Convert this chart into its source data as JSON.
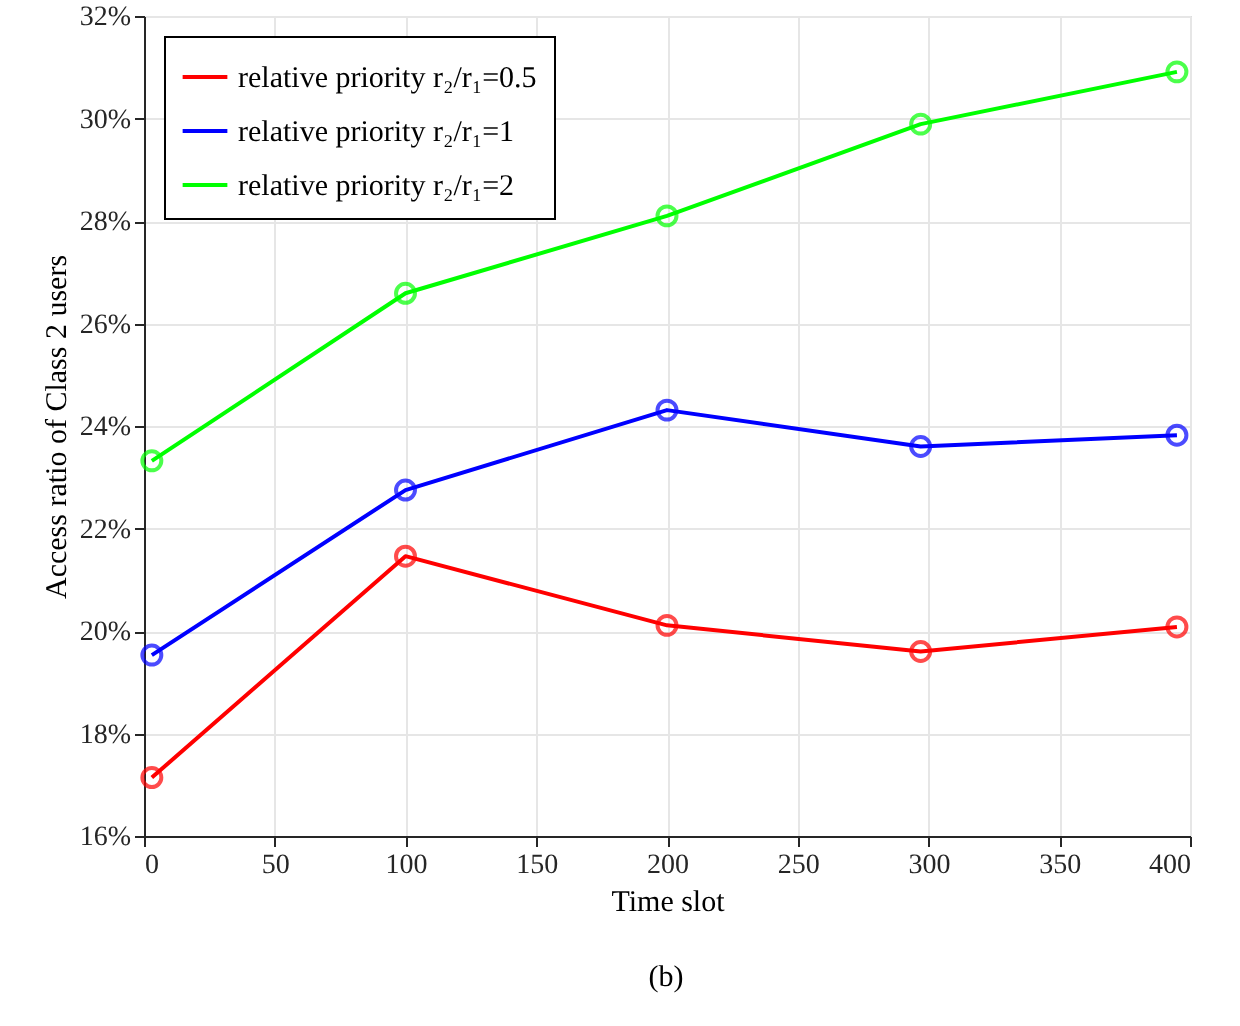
{
  "chart_data": {
    "type": "line",
    "xlabel": "Time slot",
    "ylabel": "Access ratio of Class 2 users",
    "x": [
      3,
      100,
      200,
      297,
      395
    ],
    "series": [
      {
        "name": "relative priority r₂/r₁=0.5",
        "color": "#ff0000",
        "values": [
          17.14,
          21.46,
          20.11,
          19.6,
          20.08
        ]
      },
      {
        "name": "relative priority r₂/r₁=1",
        "color": "#0000ff",
        "values": [
          19.53,
          22.75,
          24.31,
          23.6,
          23.82
        ]
      },
      {
        "name": "relative priority r₂/r₁=2",
        "color": "#00ff00",
        "values": [
          23.32,
          26.59,
          28.1,
          29.89,
          30.91
        ]
      }
    ],
    "xlim": [
      0,
      400
    ],
    "xticks": [
      0,
      50,
      100,
      150,
      200,
      250,
      300,
      350,
      400
    ],
    "ylim": [
      16,
      32
    ],
    "yticks": [
      {
        "value": 16,
        "label": "16%"
      },
      {
        "value": 18,
        "label": "18%"
      },
      {
        "value": 20,
        "label": "20%"
      },
      {
        "value": 22,
        "label": "22%"
      },
      {
        "value": 24,
        "label": "24%"
      },
      {
        "value": 26,
        "label": "26%"
      },
      {
        "value": 28,
        "label": "28%"
      },
      {
        "value": 30,
        "label": "30%"
      },
      {
        "value": 32,
        "label": "32%"
      }
    ],
    "grid": true,
    "legend": "top left",
    "marker": "circle",
    "line_style": "solid",
    "annotations": [
      "(b)"
    ]
  }
}
